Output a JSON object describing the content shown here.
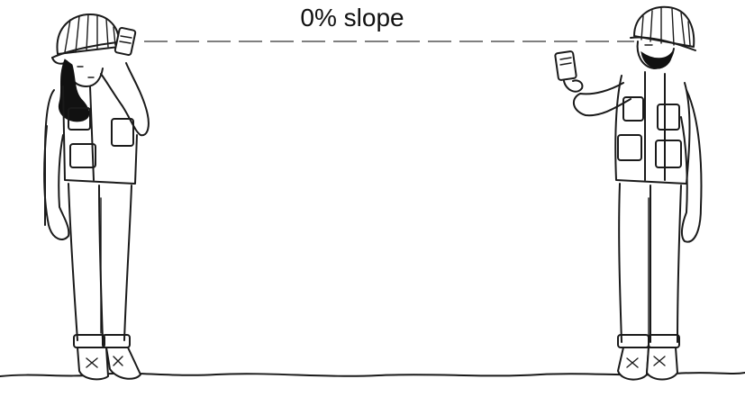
{
  "diagram": {
    "caption": "0% slope",
    "line_style": "dashed",
    "ink_color": "#1a1a1a",
    "sight_line_color": "#555555",
    "background": "#ffffff"
  }
}
